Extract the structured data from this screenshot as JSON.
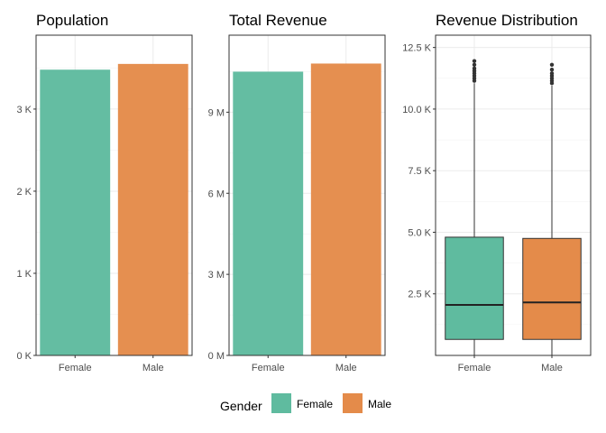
{
  "colors": {
    "Female": "#5fbb9f",
    "Male": "#e48b4a"
  },
  "legend": {
    "title": "Gender",
    "items": [
      "Female",
      "Male"
    ]
  },
  "chart_data": [
    {
      "type": "bar",
      "title": "Population",
      "categories": [
        "Female",
        "Male"
      ],
      "values": [
        3480,
        3550
      ],
      "ylim": [
        0,
        3900
      ],
      "y_ticks": [
        0,
        1000,
        2000,
        3000
      ],
      "y_tick_labels": [
        "0 K",
        "1 K",
        "2 K",
        "3 K"
      ],
      "grid": true
    },
    {
      "type": "bar",
      "title": "Total Revenue",
      "categories": [
        "Female",
        "Male"
      ],
      "values": [
        10500000,
        10800000
      ],
      "ylim": [
        0,
        11850000
      ],
      "y_ticks": [
        0,
        3000000,
        6000000,
        9000000
      ],
      "y_tick_labels": [
        "0 M",
        "3 M",
        "6 M",
        "9 M"
      ],
      "grid": true
    },
    {
      "type": "box",
      "title": "Revenue Distribution",
      "categories": [
        "Female",
        "Male"
      ],
      "boxes": [
        {
          "category": "Female",
          "q1": 650,
          "median": 2050,
          "q3": 4800,
          "whisker_low": 0,
          "whisker_high": 11050,
          "outliers": [
            11150,
            11250,
            11350,
            11450,
            11550,
            11650,
            11800,
            11950
          ]
        },
        {
          "category": "Male",
          "q1": 650,
          "median": 2150,
          "q3": 4750,
          "whisker_low": 0,
          "whisker_high": 10950,
          "outliers": [
            11050,
            11150,
            11250,
            11350,
            11450,
            11600,
            11800
          ]
        }
      ],
      "ylim": [
        0,
        13000
      ],
      "y_ticks": [
        2500,
        5000,
        7500,
        10000,
        12500
      ],
      "y_tick_labels": [
        "2.5 K",
        "5.0 K",
        "7.5 K",
        "10.0 K",
        "12.5 K"
      ],
      "grid": true
    }
  ]
}
